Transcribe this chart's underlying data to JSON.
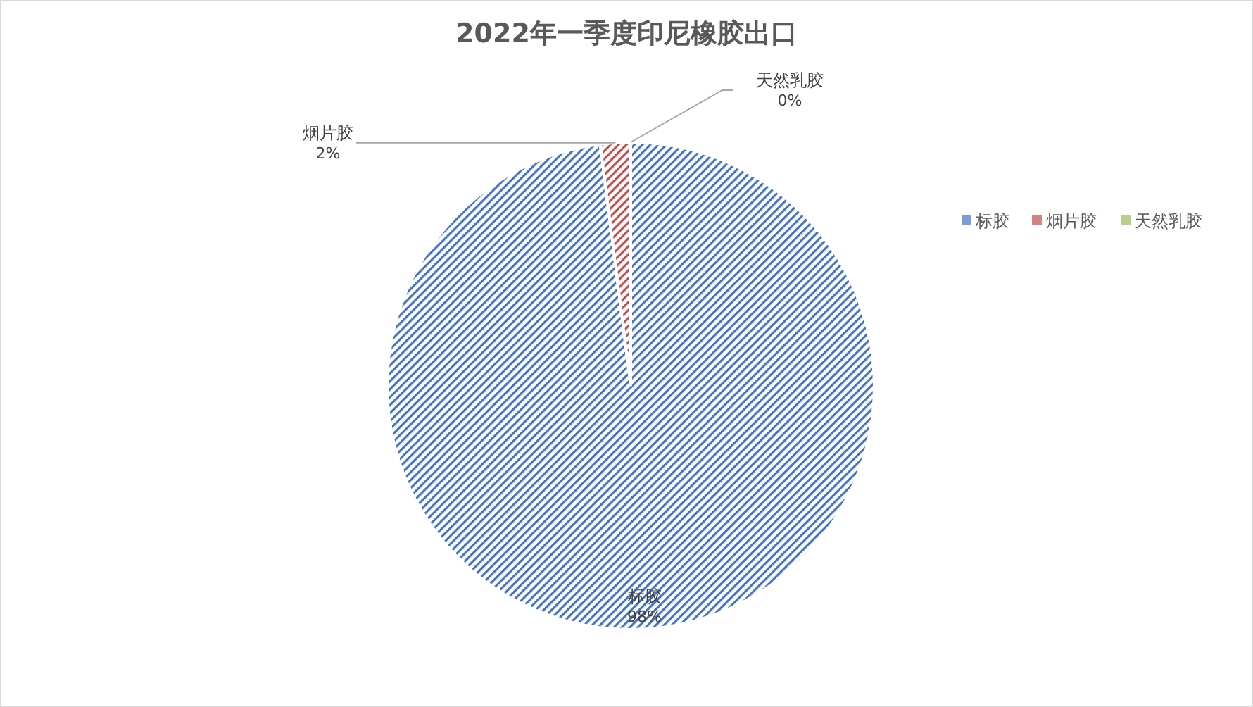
{
  "chart_data": {
    "type": "pie",
    "title": "2022年一季度印尼橡胶出口",
    "categories": [
      "标胶",
      "烟片胶",
      "天然乳胶"
    ],
    "values": [
      98,
      2,
      0
    ],
    "value_labels": [
      "98%",
      "2%",
      "0%"
    ],
    "colors": [
      "#4472c4",
      "#c0504d",
      "#9bbb59"
    ],
    "legend": "right"
  }
}
